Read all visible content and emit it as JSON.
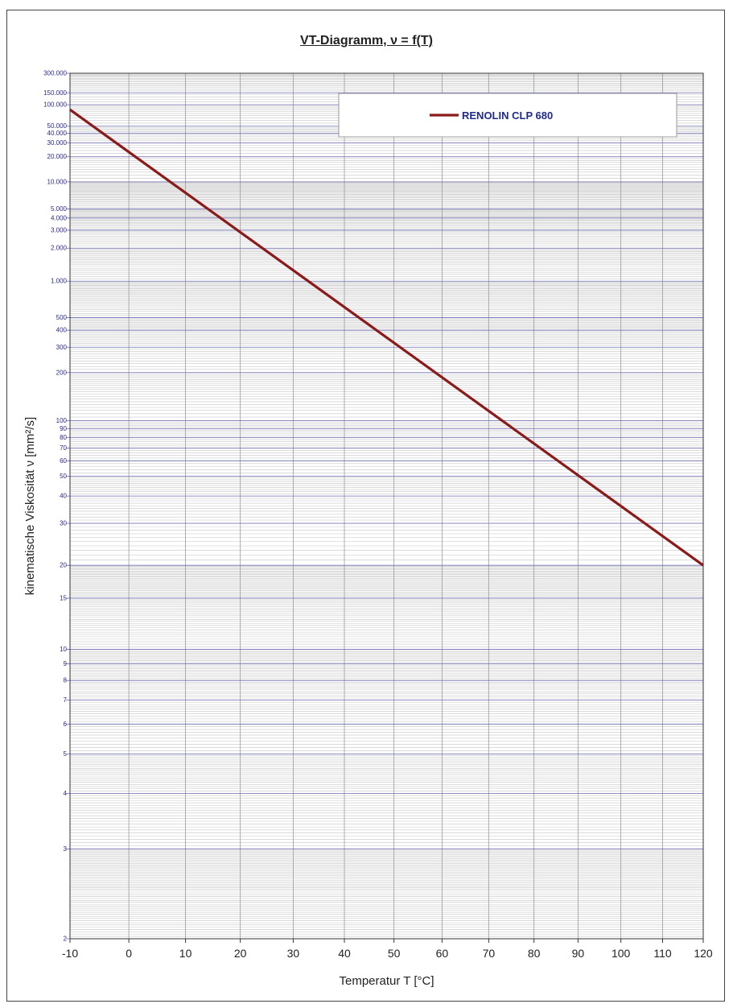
{
  "chart_data": {
    "type": "line",
    "title": "VT-Diagramm, ν = f(T)",
    "xlabel": "Temperatur T [°C]",
    "ylabel": "kinematische Viskosität ν [mm²/s]",
    "xlim": [
      -10,
      120
    ],
    "ylim": [
      2,
      300000
    ],
    "y_scale": "ubbelohde-walther (log-log)",
    "grid": true,
    "legend_position": "top-right",
    "x_ticks": [
      {
        "value": -10,
        "label": "-10"
      },
      {
        "value": 0,
        "label": "0"
      },
      {
        "value": 10,
        "label": "10"
      },
      {
        "value": 20,
        "label": "20"
      },
      {
        "value": 30,
        "label": "30"
      },
      {
        "value": 40,
        "label": "40"
      },
      {
        "value": 50,
        "label": "50"
      },
      {
        "value": 60,
        "label": "60"
      },
      {
        "value": 70,
        "label": "70"
      },
      {
        "value": 80,
        "label": "80"
      },
      {
        "value": 90,
        "label": "90"
      },
      {
        "value": 100,
        "label": "100"
      },
      {
        "value": 110,
        "label": "110"
      },
      {
        "value": 120,
        "label": "120"
      }
    ],
    "y_ticks": [
      {
        "value": 300000,
        "label": "300.000"
      },
      {
        "value": 150000,
        "label": "150.000"
      },
      {
        "value": 100000,
        "label": "100.000"
      },
      {
        "value": 50000,
        "label": "50.000"
      },
      {
        "value": 40000,
        "label": "40.000"
      },
      {
        "value": 30000,
        "label": "30.000"
      },
      {
        "value": 20000,
        "label": "20.000"
      },
      {
        "value": 10000,
        "label": "10.000"
      },
      {
        "value": 5000,
        "label": "5.000"
      },
      {
        "value": 4000,
        "label": "4.000"
      },
      {
        "value": 3000,
        "label": "3.000"
      },
      {
        "value": 2000,
        "label": "2.000"
      },
      {
        "value": 1000,
        "label": "1.000"
      },
      {
        "value": 500,
        "label": "500"
      },
      {
        "value": 400,
        "label": "400"
      },
      {
        "value": 300,
        "label": "300"
      },
      {
        "value": 200,
        "label": "200"
      },
      {
        "value": 100,
        "label": "100"
      },
      {
        "value": 90,
        "label": "90"
      },
      {
        "value": 80,
        "label": "80"
      },
      {
        "value": 70,
        "label": "70"
      },
      {
        "value": 60,
        "label": "60"
      },
      {
        "value": 50,
        "label": "50"
      },
      {
        "value": 40,
        "label": "40"
      },
      {
        "value": 30,
        "label": "30"
      },
      {
        "value": 20,
        "label": "20"
      },
      {
        "value": 15,
        "label": "15"
      },
      {
        "value": 10,
        "label": "10"
      },
      {
        "value": 9,
        "label": "9"
      },
      {
        "value": 8,
        "label": "8"
      },
      {
        "value": 7,
        "label": "7"
      },
      {
        "value": 6,
        "label": "6"
      },
      {
        "value": 5,
        "label": "5"
      },
      {
        "value": 4,
        "label": "4"
      },
      {
        "value": 3,
        "label": "3"
      },
      {
        "value": 2,
        "label": "2"
      }
    ],
    "series": [
      {
        "name": "RENOLIN CLP 680",
        "color": "#8b1a1a",
        "x": [
          -10,
          120
        ],
        "y": [
          85000,
          20
        ],
        "interpolation": "straight line on Ubbelohde-Walther scale"
      }
    ]
  }
}
